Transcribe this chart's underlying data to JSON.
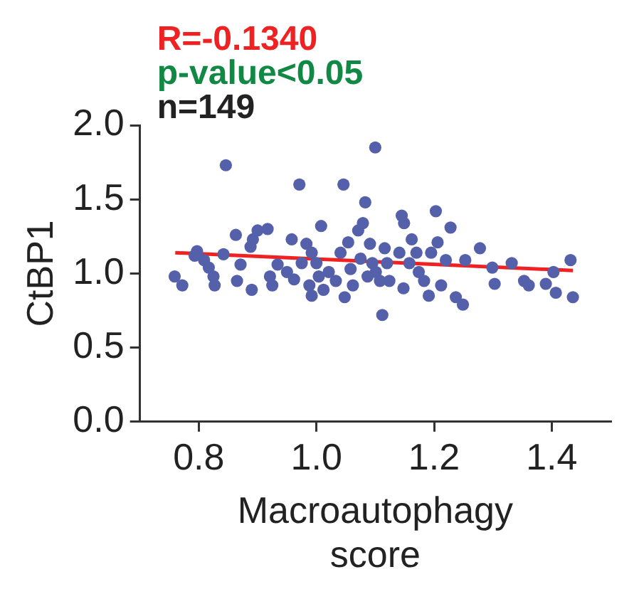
{
  "chart_data": {
    "type": "scatter",
    "xlabel": "Macroautophagy score",
    "ylabel": "CtBP1",
    "annotations": [
      "R=-0.1340",
      "p-value<0.05",
      "n=149"
    ],
    "xlim": [
      0.7,
      1.5
    ],
    "xticks": [
      0.8,
      {
        "value": 1,
        "label": "1.0"
      },
      1.2,
      1.4
    ],
    "ylim": [
      0,
      2
    ],
    "yticks": [
      {
        "value": 0,
        "label": "0.0"
      },
      0.5,
      {
        "value": 1,
        "label": "1.0"
      },
      1.5,
      {
        "value": 2,
        "label": "2.0"
      }
    ],
    "grid": false,
    "legend": false,
    "marker": "circle",
    "series": [
      {
        "color": "#5560aa",
        "x": [
          0.759,
          0.772,
          0.793,
          0.797,
          0.809,
          0.817,
          0.825,
          0.827,
          0.842,
          0.846,
          0.863,
          0.865,
          0.871,
          0.89,
          0.888,
          0.892,
          0.9,
          0.917,
          0.921,
          0.925,
          0.934,
          0.95,
          0.958,
          0.962,
          0.971,
          0.975,
          0.983,
          0.988,
          0.992,
          0.992,
          1.0,
          1.004,
          1.008,
          1.012,
          1.021,
          1.033,
          1.041,
          1.046,
          1.048,
          1.054,
          1.058,
          1.062,
          1.071,
          1.075,
          1.079,
          1.083,
          1.087,
          1.091,
          1.095,
          1.1,
          1.101,
          1.108,
          1.112,
          1.116,
          1.12,
          1.124,
          1.141,
          1.145,
          1.148,
          1.149,
          1.158,
          1.162,
          1.17,
          1.174,
          1.183,
          1.191,
          1.195,
          1.203,
          1.206,
          1.212,
          1.22,
          1.228,
          1.237,
          1.249,
          1.253,
          1.278,
          1.299,
          1.303,
          1.332,
          1.353,
          1.361,
          1.39,
          1.403,
          1.407,
          1.432,
          1.436
        ],
        "values": [
          0.98,
          0.92,
          1.12,
          1.15,
          1.09,
          1.04,
          0.98,
          0.92,
          1.13,
          1.73,
          1.26,
          0.95,
          1.06,
          0.89,
          1.18,
          1.23,
          1.29,
          1.3,
          0.98,
          0.92,
          1.06,
          1.01,
          1.23,
          0.96,
          1.6,
          1.07,
          1.2,
          0.92,
          0.85,
          1.14,
          1.07,
          0.98,
          1.32,
          0.89,
          1.01,
          0.95,
          1.14,
          1.6,
          0.84,
          1.21,
          1.03,
          0.92,
          1.29,
          1.1,
          1.34,
          1.48,
          0.98,
          1.2,
          1.07,
          1.85,
          1.01,
          0.95,
          0.72,
          1.17,
          1.07,
          0.95,
          1.14,
          1.39,
          0.9,
          1.34,
          1.07,
          1.23,
          1.14,
          1.01,
          0.95,
          0.85,
          1.14,
          1.42,
          1.21,
          0.92,
          1.09,
          1.31,
          0.84,
          0.79,
          1.09,
          1.17,
          1.04,
          0.93,
          1.07,
          0.95,
          0.92,
          0.93,
          1.01,
          0.87,
          1.09,
          0.84
        ]
      },
      {
        "type": "line",
        "color": "#ee2222",
        "marker": "none",
        "x": [
          0.76,
          1.436
        ],
        "values": [
          1.14,
          1.02
        ]
      }
    ]
  }
}
